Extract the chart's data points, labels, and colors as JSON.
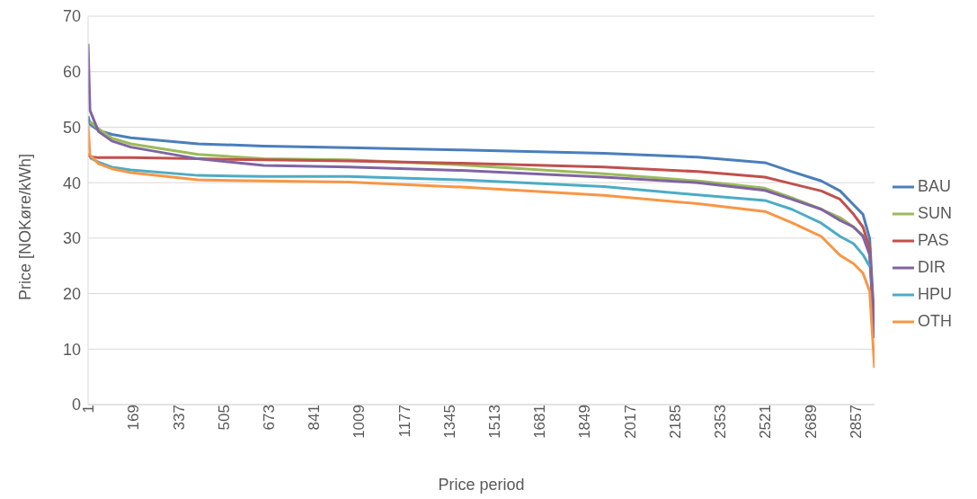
{
  "chart_data": {
    "type": "line",
    "xlabel": "Price period",
    "ylabel": "Price  [NOKøre/kWh]",
    "x": [
      1,
      8,
      40,
      90,
      160,
      410,
      655,
      970,
      1390,
      1920,
      2270,
      2520,
      2620,
      2730,
      2800,
      2850,
      2885,
      2910,
      2928
    ],
    "series": [
      {
        "name": "BAU",
        "color": "#4a7ebb",
        "values": [
          52,
          50.5,
          49.4,
          48.7,
          48.1,
          47,
          46.6,
          46.3,
          45.9,
          45.3,
          44.6,
          43.6,
          42,
          40.3,
          38.5,
          36,
          34.3,
          29.9,
          14
        ]
      },
      {
        "name": "SUN",
        "color": "#9bbb59",
        "values": [
          null,
          51,
          49.7,
          48,
          47,
          45.1,
          44.3,
          44.1,
          43.2,
          41.6,
          40.3,
          39,
          37.3,
          35.2,
          33.7,
          32,
          30.5,
          27.3,
          12
        ]
      },
      {
        "name": "PAS",
        "color": "#c0504d",
        "values": [
          45.3,
          44.7,
          44.5,
          44.5,
          44.5,
          44.3,
          44.1,
          43.9,
          43.5,
          42.8,
          42,
          41,
          39.8,
          38.5,
          37,
          34.3,
          32,
          28.2,
          12
        ]
      },
      {
        "name": "DIR",
        "color": "#8064a2",
        "values": [
          65,
          53,
          49.2,
          47.5,
          46.4,
          44.3,
          43.1,
          42.8,
          42.2,
          41,
          40,
          38.6,
          37,
          35.2,
          33.2,
          32,
          30.3,
          27,
          12
        ]
      },
      {
        "name": "HPU",
        "color": "#4bacc6",
        "values": [
          null,
          44.5,
          43.7,
          42.8,
          42.3,
          41.3,
          41.1,
          41.1,
          40.5,
          39.3,
          37.8,
          36.8,
          35.2,
          32.7,
          30.3,
          29,
          27,
          24.9,
          null
        ]
      },
      {
        "name": "OTH",
        "color": "#f79646",
        "values": [
          50.3,
          45,
          43.4,
          42.5,
          41.8,
          40.5,
          40.3,
          40.1,
          39.2,
          37.7,
          36.2,
          34.8,
          32.8,
          30.3,
          26.9,
          25.4,
          23.7,
          20.4,
          6.6
        ]
      }
    ],
    "xlim": [
      1,
      2928
    ],
    "xticks": [
      1,
      169,
      337,
      505,
      673,
      841,
      1009,
      1177,
      1345,
      1513,
      1681,
      1849,
      2017,
      2185,
      2353,
      2521,
      2689,
      2857
    ],
    "ylim": [
      0,
      70
    ],
    "yticks": [
      0,
      10,
      20,
      30,
      40,
      50,
      60,
      70
    ],
    "grid": "y",
    "legend": "right",
    "marker": "none",
    "line_style": "solid"
  }
}
